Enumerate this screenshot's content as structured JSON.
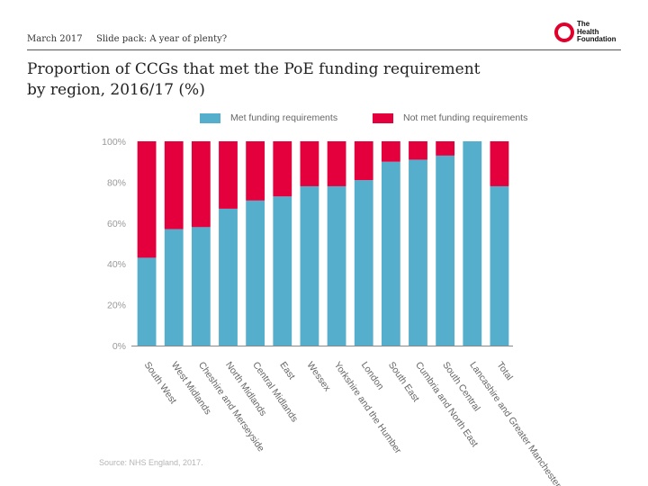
{
  "header": {
    "date": "March 2017",
    "slide_pack": "Slide pack: A year of plenty?",
    "logo_lines": [
      "The",
      "Health",
      "Foundation"
    ]
  },
  "title_line1": "Proportion of CCGs that met the PoE funding requirement",
  "title_line2": "by region, 2016/17 (%)",
  "source": "Source: NHS England, 2017.",
  "colors": {
    "met": "#55aecb",
    "not_met": "#e3003c",
    "axis": "#888888",
    "tick_text": "#999999",
    "accent": "#e0002b"
  },
  "icons": {
    "logo": "health-foundation-logo-icon"
  },
  "chart_data": {
    "type": "bar",
    "stacked": true,
    "title": "Proportion of CCGs that met the PoE funding requirement by region, 2016/17 (%)",
    "xlabel": "",
    "ylabel": "",
    "ylim": [
      0,
      100
    ],
    "yticks": [
      "0%",
      "20%",
      "40%",
      "60%",
      "80%",
      "100%"
    ],
    "ytick_values": [
      0,
      20,
      40,
      60,
      80,
      100
    ],
    "grid": false,
    "legend_position": "top",
    "categories": [
      "South West",
      "West Midlands",
      "Cheshire and Merseyside",
      "North Midlands",
      "Central Midlands",
      "East",
      "Wessex",
      "Yorkshire and the Humber",
      "London",
      "South East",
      "Cumbria and North East",
      "South Central",
      "Lancashire and Greater Manchester",
      "Total"
    ],
    "series": [
      {
        "name": "Met funding requirements",
        "values": [
          43,
          57,
          58,
          67,
          71,
          73,
          78,
          78,
          81,
          90,
          91,
          93,
          100,
          78
        ]
      },
      {
        "name": "Not met funding requirements",
        "values": [
          57,
          43,
          42,
          33,
          29,
          27,
          22,
          22,
          19,
          10,
          9,
          7,
          0,
          22
        ]
      }
    ]
  }
}
